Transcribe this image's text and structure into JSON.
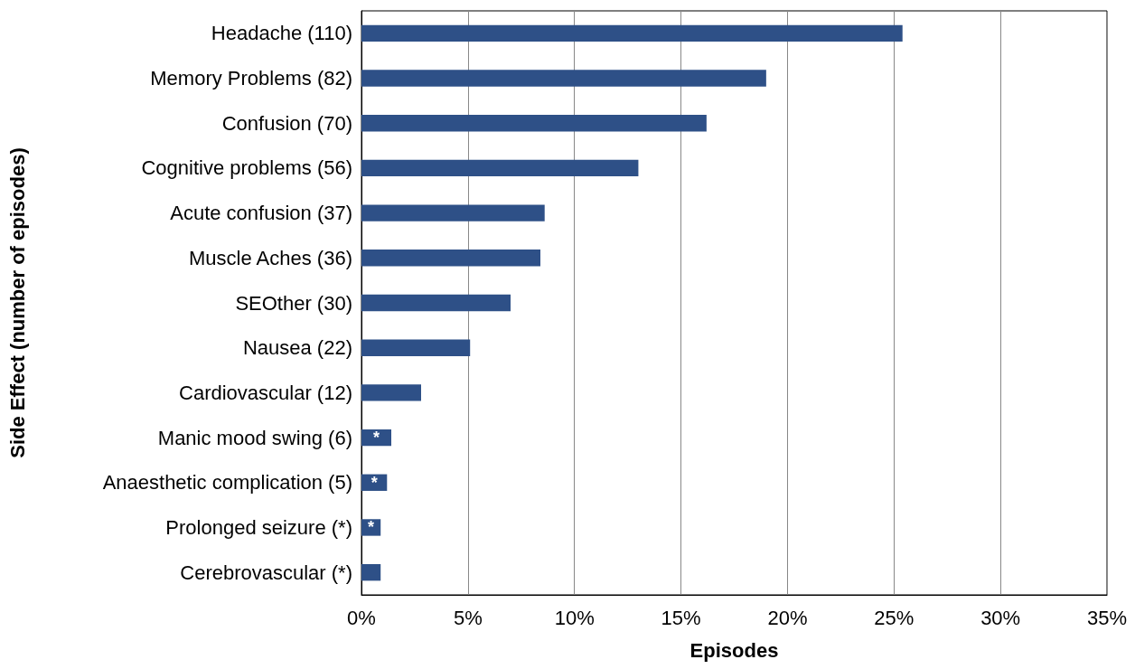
{
  "chart_data": {
    "type": "bar",
    "orientation": "horizontal",
    "xlabel": "Episodes",
    "ylabel": "Side Effect (number of episodes)",
    "categories": [
      "Headache (110)",
      "Memory Problems (82)",
      "Confusion (70)",
      "Cognitive problems (56)",
      "Acute confusion (37)",
      "Muscle Aches (36)",
      "SEOther (30)",
      "Nausea (22)",
      "Cardiovascular (12)",
      "Manic mood swing (6)",
      "Anaesthetic complication (5)",
      "Prolonged seizure (*)",
      "Cerebrovascular (*)"
    ],
    "values": [
      25.4,
      19.0,
      16.2,
      13.0,
      8.6,
      8.4,
      7.0,
      5.1,
      2.8,
      1.4,
      1.2,
      0.9,
      0.9
    ],
    "value_labels": [
      null,
      null,
      null,
      null,
      null,
      null,
      null,
      null,
      null,
      "*",
      "*",
      "*",
      null
    ],
    "color": "#2e5087",
    "xlim": [
      0,
      35
    ],
    "xticks": [
      {
        "value": 0,
        "label": "0%"
      },
      {
        "value": 5,
        "label": "5%"
      },
      {
        "value": 10,
        "label": "10%"
      },
      {
        "value": 15,
        "label": "15%"
      },
      {
        "value": 20,
        "label": "20%"
      },
      {
        "value": 25,
        "label": "25%"
      },
      {
        "value": 30,
        "label": "30%"
      },
      {
        "value": 35,
        "label": "35%"
      }
    ],
    "grid": "x"
  }
}
